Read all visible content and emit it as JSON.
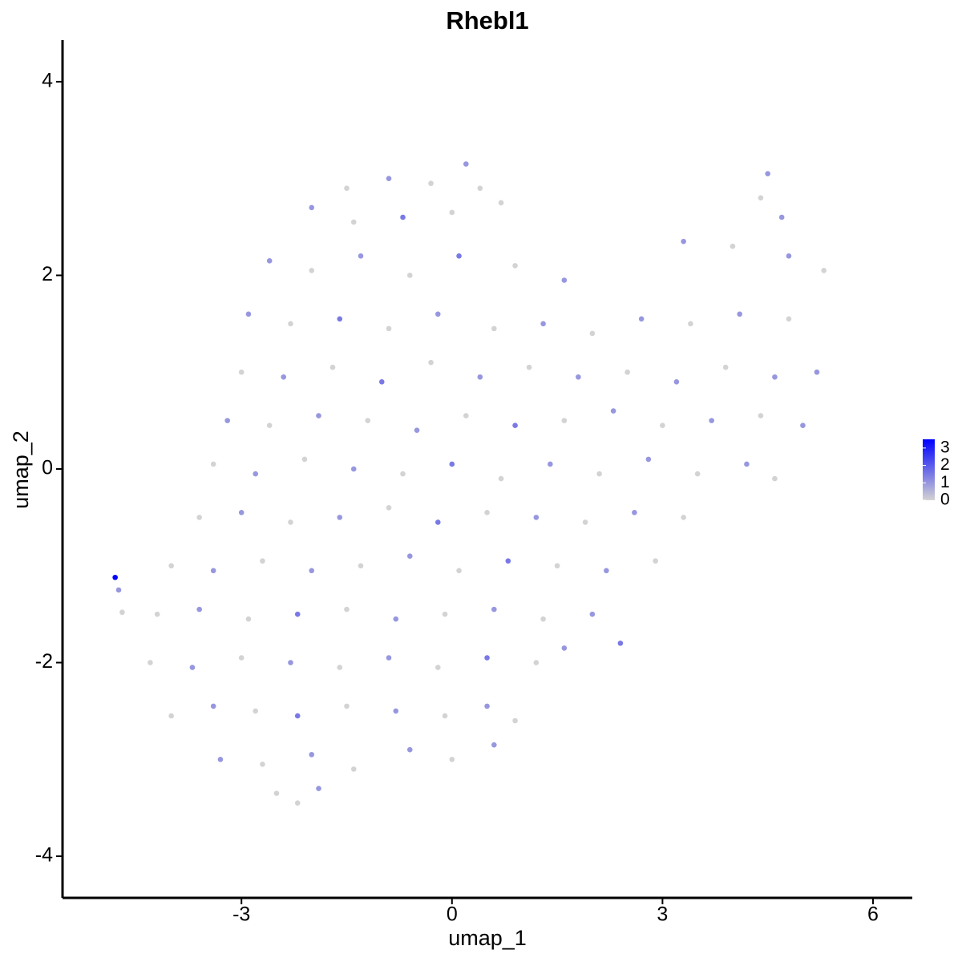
{
  "chart_data": {
    "type": "scatter",
    "title": "Rhebl1",
    "x_label": "umap_1",
    "y_label": "umap_2",
    "xlim": [
      -5.55,
      6.56
    ],
    "ylim": [
      -4.43,
      4.43
    ],
    "xticks": [
      -3,
      0,
      3,
      6
    ],
    "yticks": [
      -4,
      -2,
      0,
      2,
      4
    ],
    "colors": [
      "#d3d3d3",
      "#0000ff"
    ],
    "color_range": [
      0,
      3.5
    ],
    "colorbar_ticks": [
      0,
      1,
      2,
      3
    ],
    "x": [
      -1.5,
      -0.9,
      -0.3,
      0.2,
      0.4,
      -2.0,
      -1.4,
      -0.7,
      0,
      0.7,
      4.4,
      4.7,
      4.5,
      -2.6,
      -2.0,
      -1.3,
      -0.6,
      0.1,
      0.9,
      1.6,
      3.3,
      4.0,
      4.8,
      5.3,
      -2.9,
      -2.3,
      -1.6,
      -0.9,
      -0.2,
      0.6,
      1.3,
      2.0,
      2.7,
      3.4,
      4.1,
      4.8,
      -3.0,
      -2.4,
      -1.7,
      -1.0,
      -0.3,
      0.4,
      1.1,
      1.8,
      2.5,
      3.2,
      3.9,
      4.6,
      5.2,
      -3.2,
      -2.6,
      -1.9,
      -1.2,
      -0.5,
      0.2,
      0.9,
      1.6,
      2.3,
      3.0,
      3.7,
      4.4,
      5.0,
      -3.4,
      -2.8,
      -2.1,
      -1.4,
      -0.7,
      0,
      0.7,
      1.4,
      2.1,
      2.8,
      3.5,
      4.2,
      4.6,
      -3.6,
      -3.0,
      -2.3,
      -1.6,
      -0.9,
      -0.2,
      0.5,
      1.2,
      1.9,
      2.6,
      3.3,
      -4.0,
      -3.4,
      -2.7,
      -2.0,
      -1.3,
      -0.6,
      0.1,
      0.8,
      1.5,
      2.2,
      2.9,
      -4.2,
      -3.6,
      -2.9,
      -2.2,
      -1.5,
      -0.8,
      -0.1,
      0.6,
      1.3,
      2.0,
      2.4,
      -4.3,
      -3.7,
      -3.0,
      -2.3,
      -1.6,
      -0.9,
      -0.2,
      0.5,
      1.2,
      1.6,
      -4.0,
      -3.4,
      -2.8,
      -2.2,
      -1.5,
      -0.8,
      -0.1,
      0.5,
      0.9,
      -3.3,
      -2.7,
      -2.0,
      -1.4,
      -0.6,
      0,
      0.6,
      -2.5,
      -2.2,
      -1.9,
      -4.8,
      -4.75,
      -4.7
    ],
    "y": [
      2.9,
      3.0,
      2.95,
      3.15,
      2.9,
      2.7,
      2.55,
      2.6,
      2.65,
      2.75,
      2.8,
      2.6,
      3.05,
      2.15,
      2.05,
      2.2,
      2.0,
      2.2,
      2.1,
      1.95,
      2.35,
      2.3,
      2.2,
      2.05,
      1.6,
      1.5,
      1.55,
      1.45,
      1.6,
      1.45,
      1.5,
      1.4,
      1.55,
      1.5,
      1.6,
      1.55,
      1.0,
      0.95,
      1.05,
      0.9,
      1.1,
      0.95,
      1.05,
      0.95,
      1.0,
      0.9,
      1.05,
      0.95,
      1.0,
      0.5,
      0.45,
      0.55,
      0.5,
      0.4,
      0.55,
      0.45,
      0.5,
      0.6,
      0.45,
      0.5,
      0.55,
      0.45,
      0.05,
      -0.05,
      0.1,
      0,
      -0.05,
      0.05,
      -0.1,
      0.05,
      -0.05,
      0.1,
      -0.05,
      0.05,
      -0.1,
      -0.5,
      -0.45,
      -0.55,
      -0.5,
      -0.4,
      -0.55,
      -0.45,
      -0.5,
      -0.55,
      -0.45,
      -0.5,
      -1.0,
      -1.05,
      -0.95,
      -1.05,
      -1.0,
      -0.9,
      -1.05,
      -0.95,
      -1.0,
      -1.05,
      -0.95,
      -1.5,
      -1.45,
      -1.55,
      -1.5,
      -1.45,
      -1.55,
      -1.5,
      -1.45,
      -1.55,
      -1.5,
      -1.8,
      -2.0,
      -2.05,
      -1.95,
      -2.0,
      -2.05,
      -1.95,
      -2.05,
      -1.95,
      -2.0,
      -1.85,
      -2.55,
      -2.45,
      -2.5,
      -2.55,
      -2.45,
      -2.5,
      -2.55,
      -2.45,
      -2.6,
      -3.0,
      -3.05,
      -2.95,
      -3.1,
      -2.9,
      -3.0,
      -2.85,
      -3.35,
      -3.45,
      -3.3,
      -1.12,
      -1.25,
      -1.48
    ],
    "values": [
      0,
      1,
      0,
      1,
      0,
      1,
      0,
      1.5,
      0,
      0,
      0,
      1,
      1,
      1,
      0,
      1,
      0,
      1.5,
      0,
      1,
      1,
      0,
      1,
      0,
      1,
      0,
      1.5,
      0,
      1,
      0,
      1,
      0,
      1,
      0,
      1,
      0,
      0,
      1,
      0,
      1.5,
      0,
      1,
      0,
      1,
      0,
      1,
      0,
      1,
      1,
      1,
      0,
      1,
      0,
      1,
      0,
      1.5,
      0,
      1,
      0,
      1,
      0,
      1,
      0,
      1,
      0,
      1,
      0,
      1.5,
      0,
      1,
      0,
      1,
      0,
      1,
      0,
      0,
      1,
      0,
      1,
      0,
      1.5,
      0,
      1,
      0,
      1,
      0,
      0,
      1,
      0,
      1,
      0,
      1,
      0,
      1.5,
      0,
      1,
      0,
      0,
      1,
      0,
      1.5,
      0,
      1,
      0,
      1,
      0,
      1,
      1.5,
      0,
      1,
      0,
      1,
      0,
      1,
      0,
      1.5,
      0,
      1,
      0,
      1,
      0,
      1.5,
      0,
      1,
      0,
      1,
      0,
      1,
      0,
      1,
      0,
      1,
      0,
      1,
      0,
      0,
      1,
      3.5,
      1,
      0
    ]
  }
}
